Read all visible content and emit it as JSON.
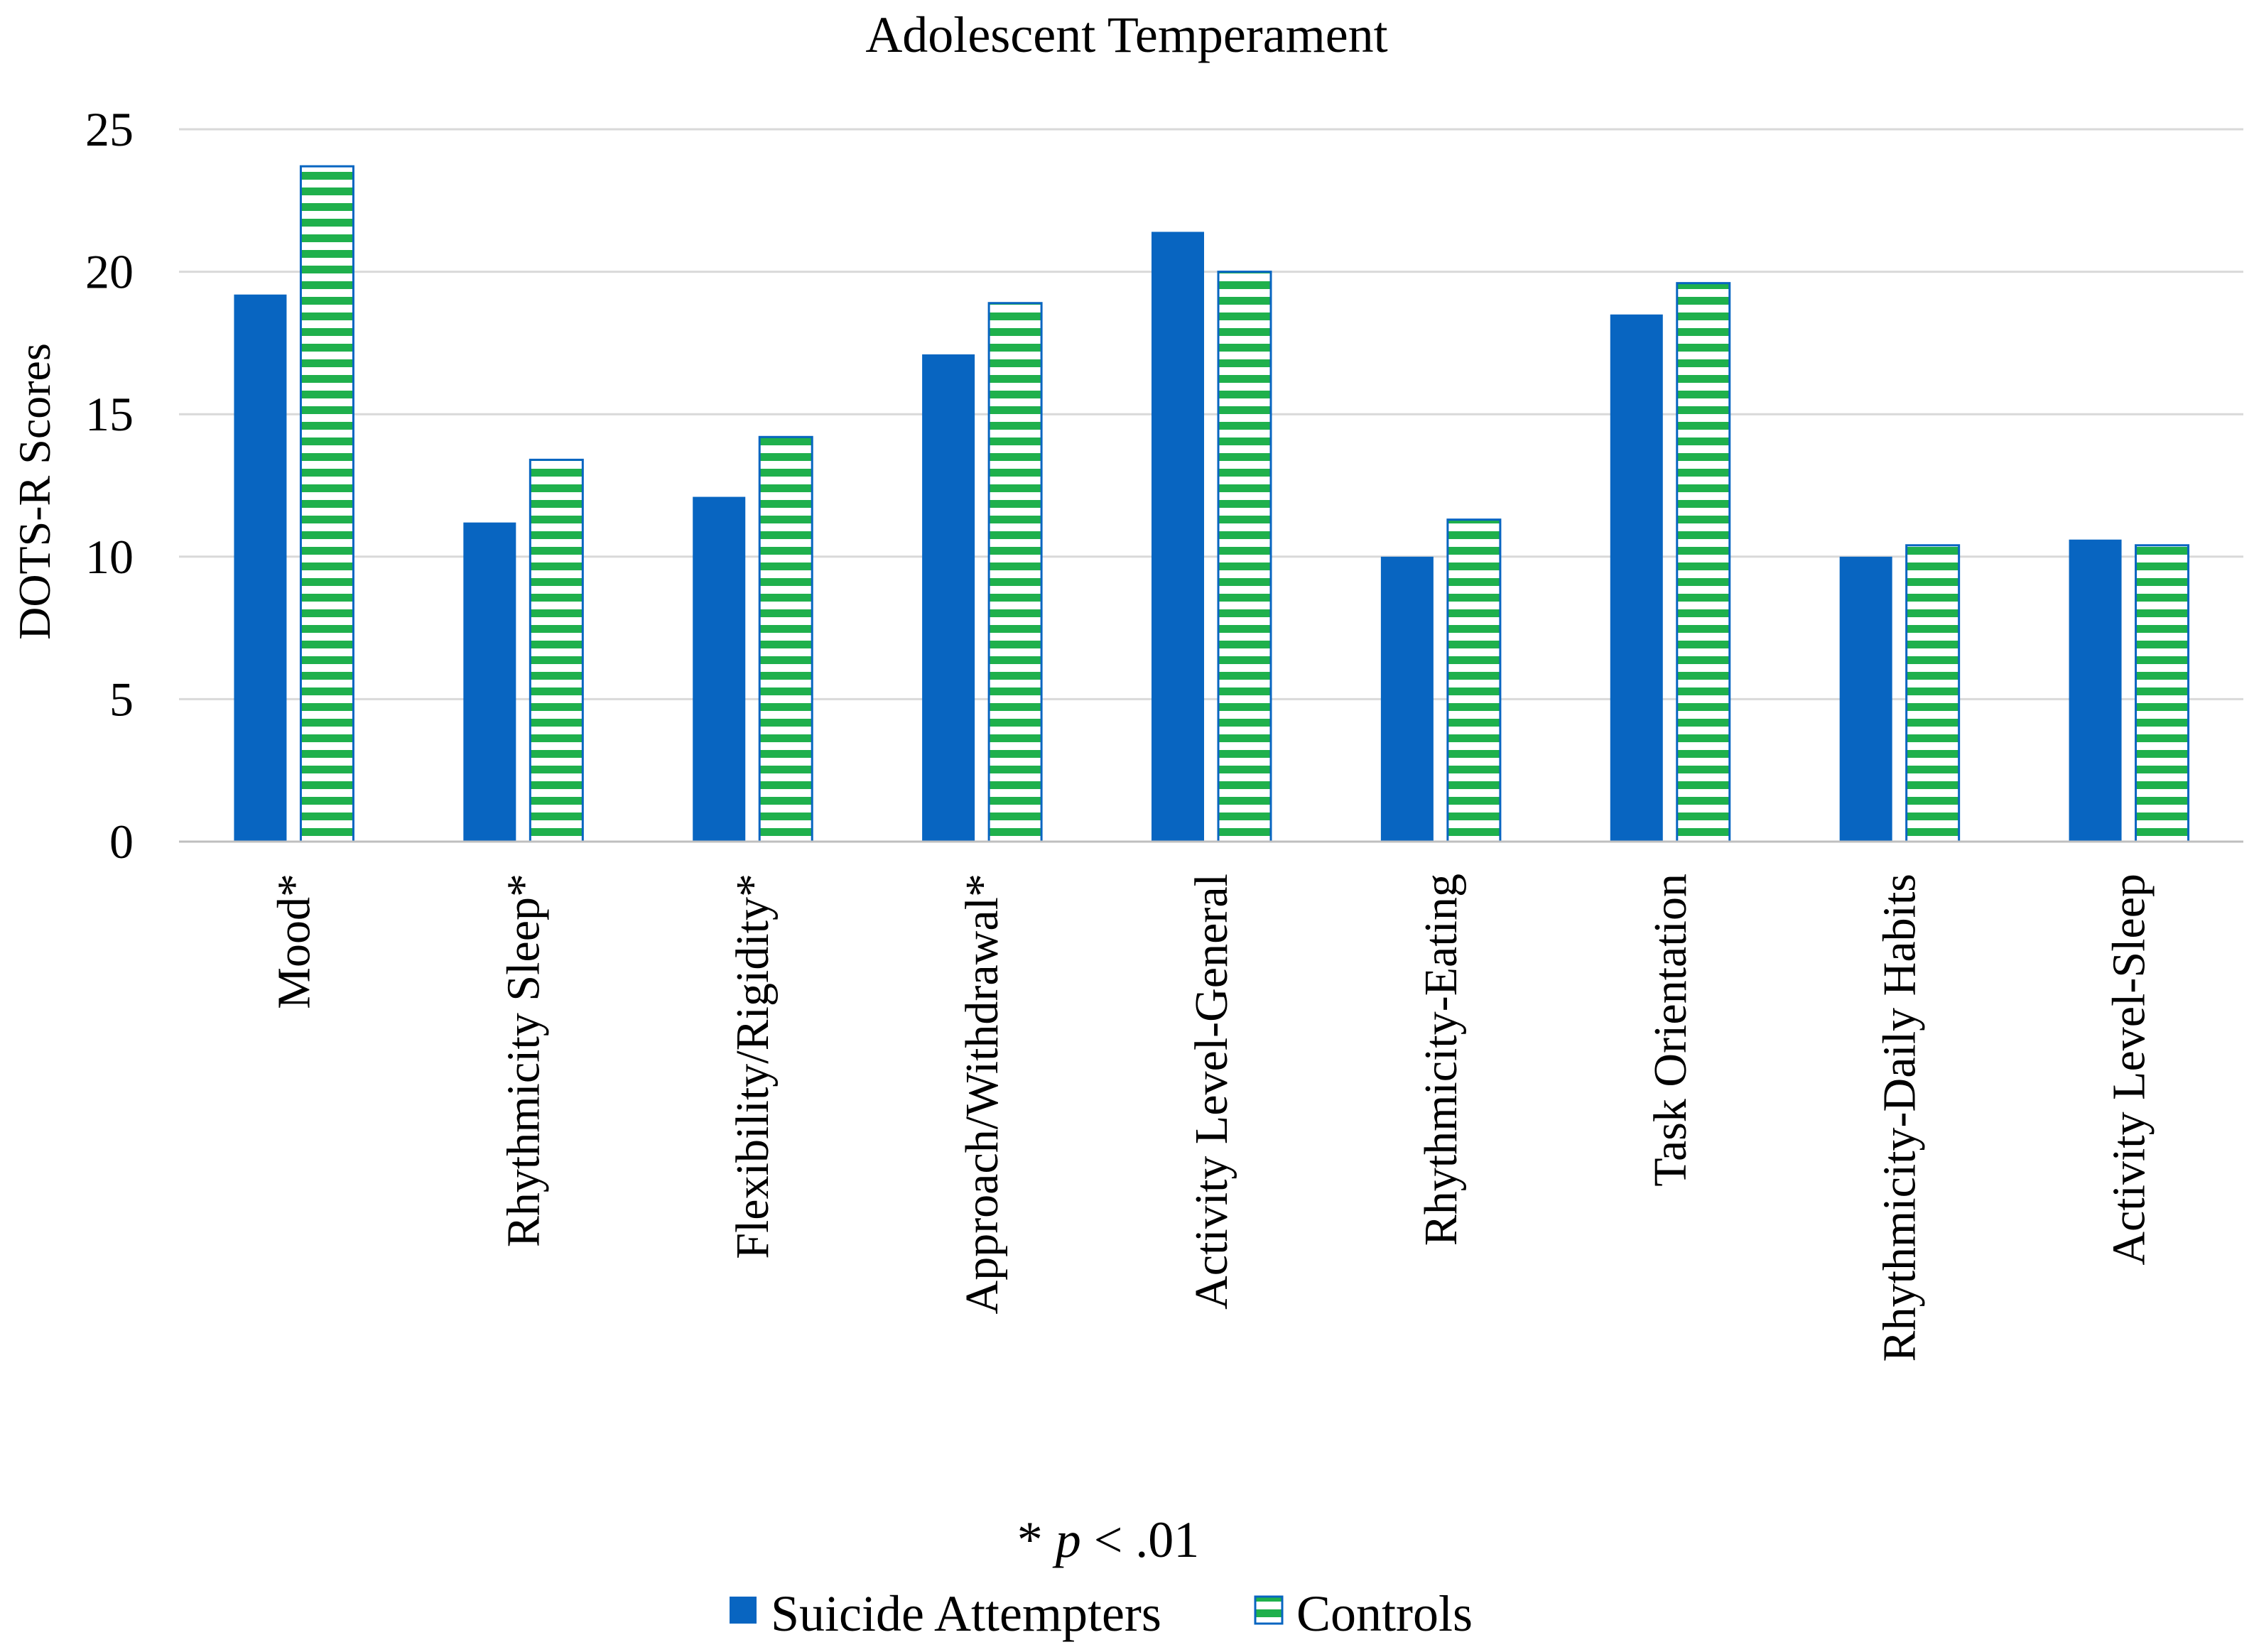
{
  "chart_data": {
    "type": "bar",
    "title": "Adolescent Temperament",
    "xlabel": "",
    "ylabel": "DOTS-R Scores",
    "ylim": [
      0,
      25
    ],
    "yticks": [
      0,
      5,
      10,
      15,
      20,
      25
    ],
    "grid": true,
    "categories": [
      "Mood*",
      "Rhythmicity Sleep*",
      "Flexibility/Rigidity*",
      "Approach/Withdrawal*",
      "Activity Level-General",
      "Rhythmicity-Eating",
      "Task Orientation",
      "Rhythmicity-Daily Habits",
      "Activity Level-Sleep"
    ],
    "series": [
      {
        "name": "Suicide Attempters",
        "color": "#0865c1",
        "pattern": "solid",
        "values": [
          19.2,
          11.2,
          12.1,
          17.1,
          21.4,
          10.0,
          18.5,
          10.0,
          10.6
        ]
      },
      {
        "name": "Controls",
        "color": "#1fb04c",
        "pattern": "horizontal-stripes",
        "values": [
          23.7,
          13.4,
          14.2,
          18.9,
          20.0,
          11.3,
          19.6,
          10.4,
          10.4
        ]
      }
    ],
    "annotation": {
      "symbol": "* ",
      "variable": "p",
      "rest": " < .01"
    },
    "legend_position": "bottom"
  }
}
